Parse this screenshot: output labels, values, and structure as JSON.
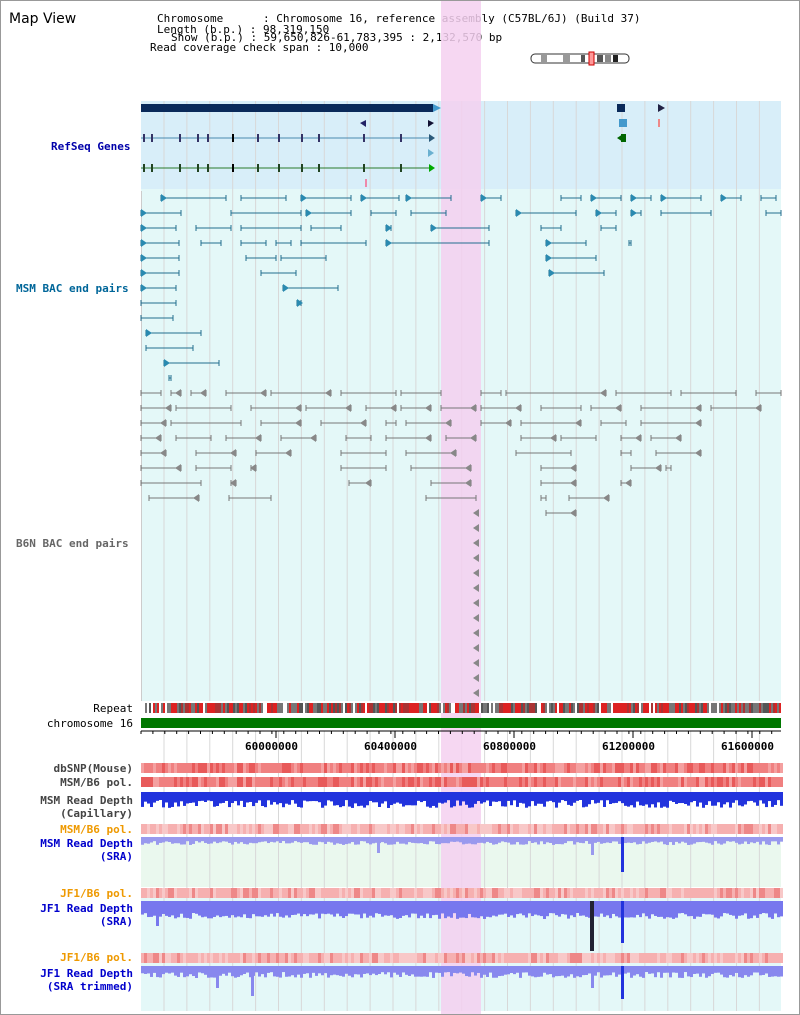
{
  "title": "Map View",
  "info": {
    "chromosome": "Chromosome      : Chromosome 16, reference assembly (C57BL/6J) (Build 37)",
    "length": "Length (b.p.) : 98,319,150",
    "show": "Show (b.p.) : 59,650,826-61,783,395 : 2,132,570 bp",
    "coverage": "Read coverage check span : 10,000"
  },
  "tracks": {
    "refseq": "RefSeq Genes",
    "msm_bac": "MSM BAC end pairs",
    "b6n_bac": "B6N BAC end pairs",
    "repeat": "Repeat",
    "chromosome": "chromosome 16",
    "dbsnp": "dbSNP(Mouse)",
    "msm_b6_pol_1": "MSM/B6 pol.",
    "msm_read_depth_cap_1": "MSM Read Depth",
    "msm_read_depth_cap_2": "(Capillary)",
    "msm_b6_pol_2": "MSM/B6 pol.",
    "msm_read_depth_sra_1": "MSM Read Depth",
    "msm_read_depth_sra_2": "(SRA)",
    "jf1_b6_pol_1": "JF1/B6 pol.",
    "jf1_read_depth_sra_1": "JF1 Read Depth",
    "jf1_read_depth_sra_2": "(SRA)",
    "jf1_b6_pol_2": "JF1/B6 pol.",
    "jf1_read_depth_trim_1": "JF1 Read Depth",
    "jf1_read_depth_trim_2": "(SRA trimmed)"
  },
  "axis": {
    "ticks": [
      "60000000",
      "60400000",
      "60800000",
      "61200000",
      "61600000"
    ]
  },
  "colors": {
    "refseq_label": "#0000aa",
    "msm_label": "#006699",
    "b6n_label": "#666666",
    "orange_label": "#ee9900",
    "blue_label": "#0000cc",
    "highlight": "#f5d0f0",
    "refseq_bg": "#d8eef9",
    "track_bg": "#e4f8f8",
    "chromosome_bar": "#007700"
  }
}
